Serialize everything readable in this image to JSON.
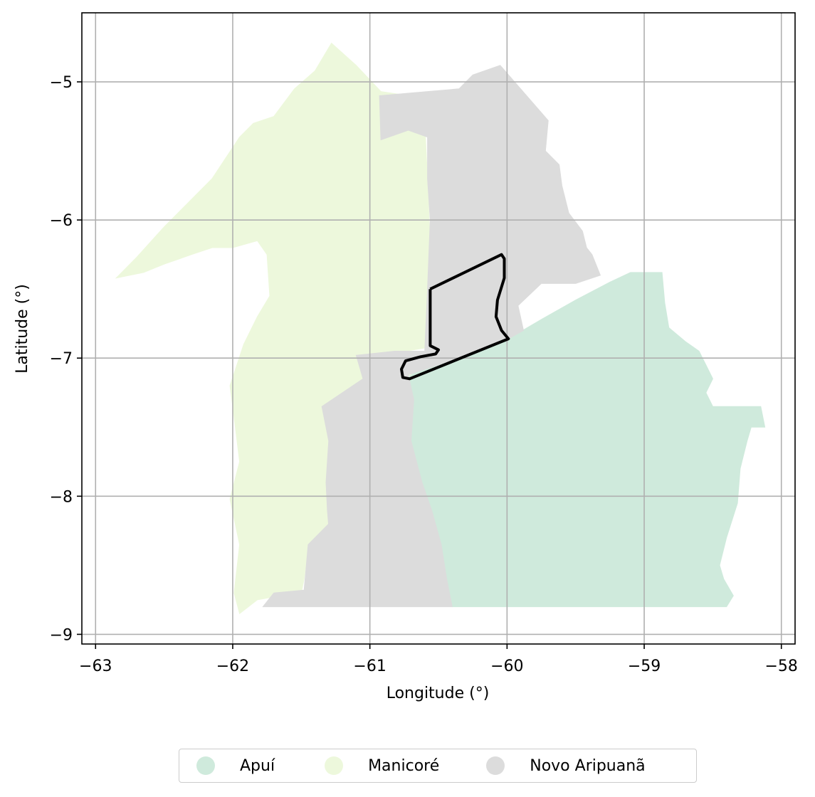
{
  "chart_data": {
    "type": "map",
    "xlabel": "Longitude (°)",
    "ylabel": "Latitude (°)",
    "xlim": [
      -63.1,
      -57.9
    ],
    "ylim": [
      -9.07,
      -4.5
    ],
    "xticks": [
      -63,
      -62,
      -61,
      -60,
      -59,
      -58
    ],
    "yticks": [
      -5,
      -6,
      -7,
      -8,
      -9
    ],
    "grid": true,
    "legend_position": "bottom-center, below plot",
    "regions": [
      {
        "name": "Apuí",
        "color": "#cfeadc"
      },
      {
        "name": "Manicoré",
        "color": "#edf8dc"
      },
      {
        "name": "Novo Aripuanã",
        "color": "#dcdcdc"
      }
    ],
    "highlight": {
      "stroke": "#000000",
      "coordinates": [
        [
          -60.56,
          -6.5
        ],
        [
          -60.04,
          -6.25
        ],
        [
          -60.02,
          -6.28
        ],
        [
          -60.02,
          -6.42
        ],
        [
          -60.07,
          -6.58
        ],
        [
          -60.08,
          -6.7
        ],
        [
          -60.04,
          -6.8
        ],
        [
          -59.99,
          -6.86
        ],
        [
          -60.71,
          -7.15
        ],
        [
          -60.76,
          -7.14
        ],
        [
          -60.77,
          -7.08
        ],
        [
          -60.74,
          -7.02
        ],
        [
          -60.63,
          -6.99
        ],
        [
          -60.52,
          -6.97
        ],
        [
          -60.5,
          -6.94
        ],
        [
          -60.56,
          -6.91
        ],
        [
          -60.56,
          -6.5
        ]
      ]
    }
  }
}
